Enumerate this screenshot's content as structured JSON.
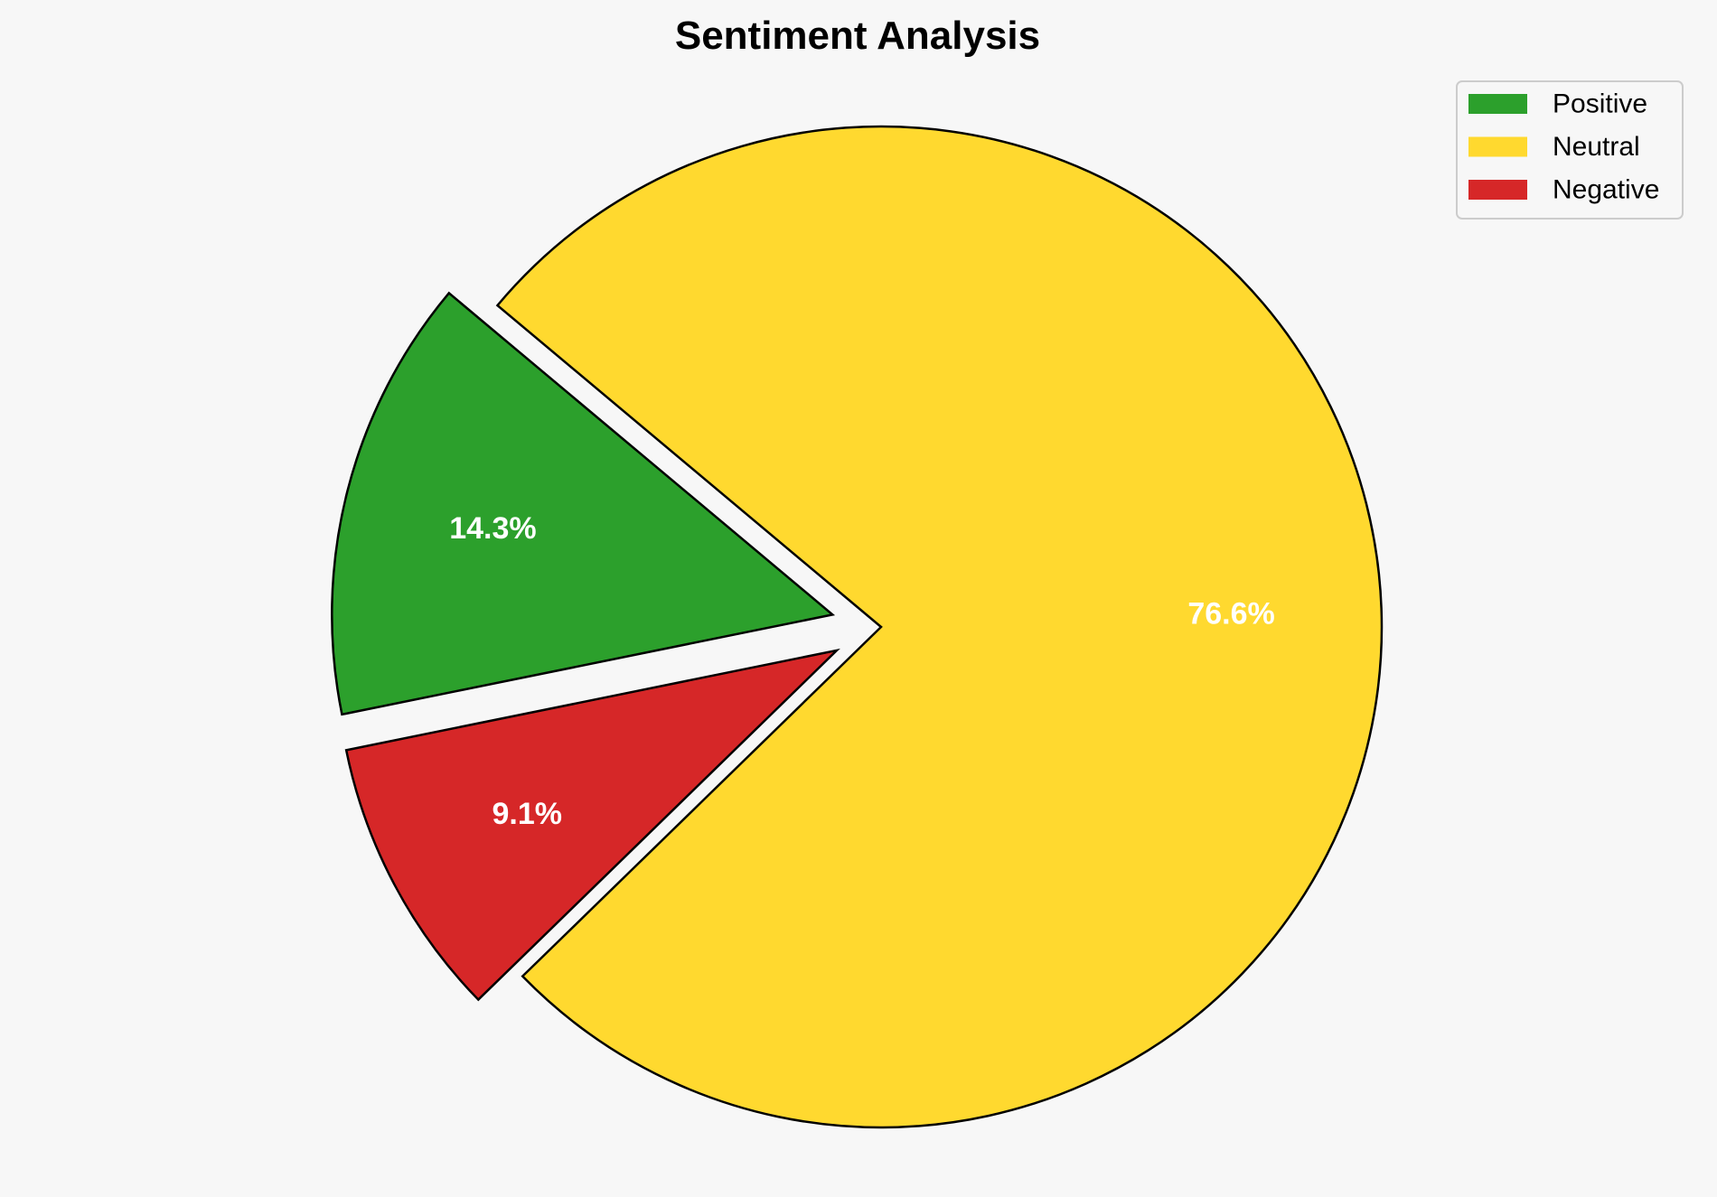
{
  "chart_data": {
    "type": "pie",
    "title": "Sentiment Analysis",
    "categories": [
      "Positive",
      "Neutral",
      "Negative"
    ],
    "values": [
      14.3,
      76.6,
      9.1
    ],
    "labels": [
      "14.3%",
      "76.6%",
      "9.1%"
    ],
    "colors": [
      "#2ca02c",
      "#ffd92f",
      "#d62728"
    ],
    "explode": [
      0.1,
      0,
      0.1
    ],
    "legend": {
      "entries": [
        "Positive",
        "Neutral",
        "Negative"
      ],
      "placement": "top-right"
    },
    "background": "#f7f7f7"
  }
}
